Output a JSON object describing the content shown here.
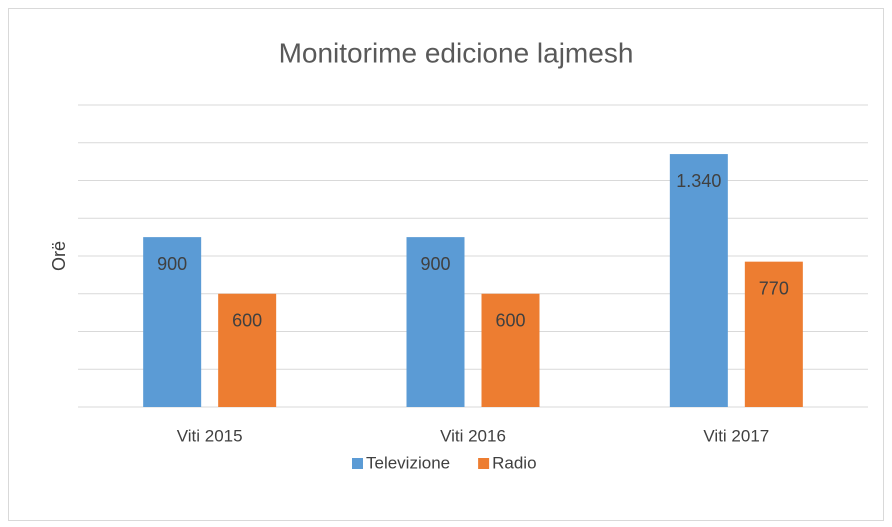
{
  "chart_data": {
    "type": "bar",
    "title": "Monitorime edicione lajmesh",
    "y_label": "Orë",
    "categories": [
      "Viti 2015",
      "Viti 2016",
      "Viti 2017"
    ],
    "series": [
      {
        "name": "Televizione",
        "color": "#5b9bd5",
        "values": [
          900,
          900,
          1340
        ],
        "value_labels": [
          "900",
          "900",
          "1.340"
        ]
      },
      {
        "name": "Radio",
        "color": "#ed7d31",
        "values": [
          600,
          600,
          770
        ],
        "value_labels": [
          "600",
          "600",
          "770"
        ]
      }
    ],
    "ylim": [
      0,
      1600
    ],
    "yticks": [
      0,
      200,
      400,
      600,
      800,
      1000,
      1200,
      1400,
      1600
    ],
    "grid": true,
    "legend": "bottom"
  }
}
